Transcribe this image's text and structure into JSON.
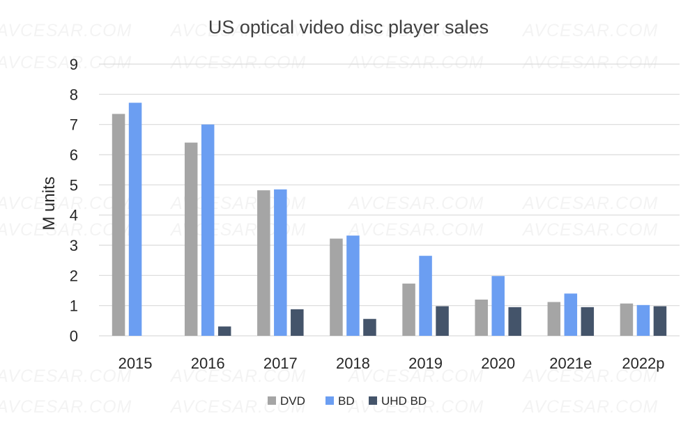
{
  "chart_data": {
    "type": "bar",
    "title": "US optical video disc player sales",
    "ylabel": "M units",
    "xlabel": "",
    "ylim": [
      0,
      9
    ],
    "yticks": [
      0,
      1,
      2,
      3,
      4,
      5,
      6,
      7,
      8,
      9
    ],
    "grid": true,
    "legend": "bottom",
    "categories": [
      "2015",
      "2016",
      "2017",
      "2018",
      "2019",
      "2020",
      "2021e",
      "2022p"
    ],
    "series": [
      {
        "name": "DVD",
        "color": "#a5a5a5",
        "values": [
          7.35,
          6.4,
          4.82,
          3.22,
          1.73,
          1.2,
          1.12,
          1.07
        ]
      },
      {
        "name": "BD",
        "color": "#6b9ef2",
        "values": [
          7.72,
          7.0,
          4.85,
          3.32,
          2.65,
          1.98,
          1.4,
          1.02
        ]
      },
      {
        "name": "UHD BD",
        "color": "#44546a",
        "values": [
          0,
          0.31,
          0.88,
          0.56,
          0.98,
          0.95,
          0.95,
          0.98
        ]
      }
    ]
  },
  "watermark": "AVCESAR.COM"
}
